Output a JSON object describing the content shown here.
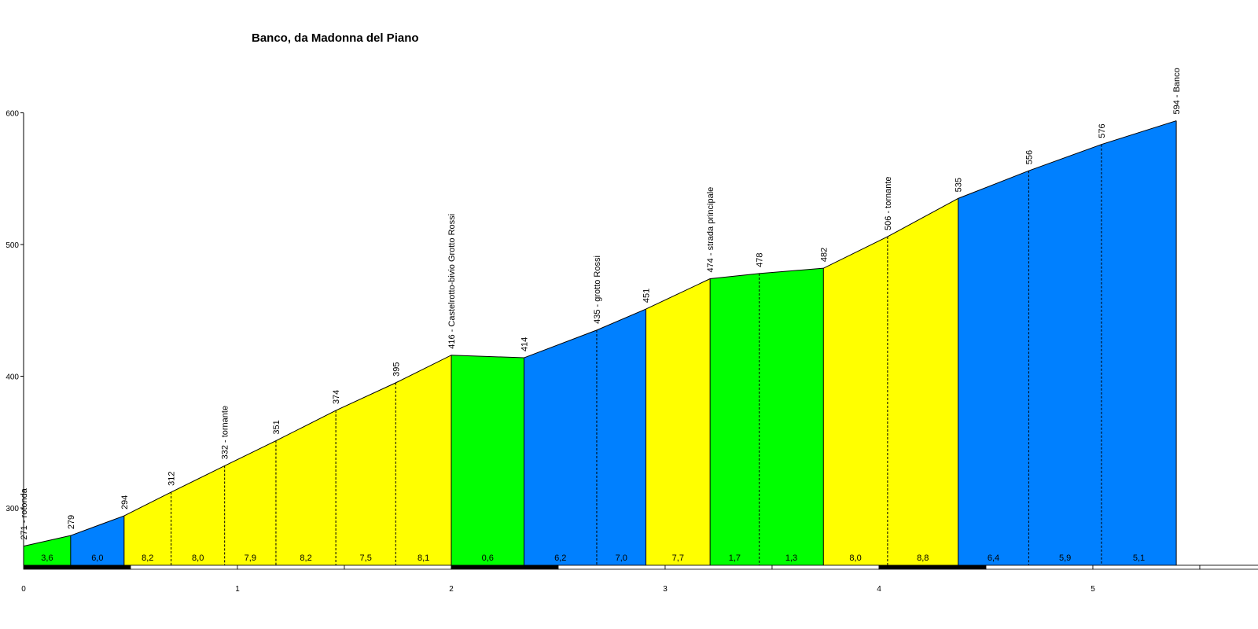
{
  "chart_data": {
    "type": "area",
    "title": "Banco, da Madonna del Piano",
    "xlabel": "",
    "ylabel": "",
    "xlim": [
      0,
      5.75
    ],
    "ylim": [
      255,
      600
    ],
    "grid": false,
    "legend": "none",
    "y_ticks": [
      "300",
      "400",
      "500",
      "600"
    ],
    "x_ticks": [
      "0",
      "1",
      "2",
      "3",
      "4",
      "5"
    ],
    "colors": {
      "easy": "#00ff00",
      "moderate": "#0080ff",
      "hard": "#ffff00",
      "line": "#000000",
      "divider": "#000000"
    },
    "points": [
      {
        "x": 0.0,
        "elev": 271,
        "label": "271 - rotonda"
      },
      {
        "x": 0.22,
        "elev": 279,
        "label": "279"
      },
      {
        "x": 0.47,
        "elev": 294,
        "label": "294"
      },
      {
        "x": 0.69,
        "elev": 312,
        "label": "312"
      },
      {
        "x": 0.94,
        "elev": 332,
        "label": "332 - tornante"
      },
      {
        "x": 1.18,
        "elev": 351,
        "label": "351"
      },
      {
        "x": 1.46,
        "elev": 374,
        "label": "374"
      },
      {
        "x": 1.74,
        "elev": 395,
        "label": "395"
      },
      {
        "x": 2.0,
        "elev": 416,
        "label": "416 - Castelrotto-bivio Grotto Rossi"
      },
      {
        "x": 2.34,
        "elev": 414,
        "label": "414"
      },
      {
        "x": 2.68,
        "elev": 435,
        "label": "435 - grotto Rossi"
      },
      {
        "x": 2.91,
        "elev": 451,
        "label": "451"
      },
      {
        "x": 3.21,
        "elev": 474,
        "label": "474 - strada principale"
      },
      {
        "x": 3.44,
        "elev": 478,
        "label": "478"
      },
      {
        "x": 3.74,
        "elev": 482,
        "label": "482"
      },
      {
        "x": 4.04,
        "elev": 506,
        "label": "506 - tornante"
      },
      {
        "x": 4.37,
        "elev": 535,
        "label": "535"
      },
      {
        "x": 4.7,
        "elev": 556,
        "label": "556"
      },
      {
        "x": 5.04,
        "elev": 576,
        "label": "576"
      },
      {
        "x": 5.39,
        "elev": 594,
        "label": "594 - Banco"
      }
    ],
    "segments": [
      {
        "grade": "3,6",
        "level": "easy"
      },
      {
        "grade": "6,0",
        "level": "moderate"
      },
      {
        "grade": "8,2",
        "level": "hard"
      },
      {
        "grade": "8,0",
        "level": "hard"
      },
      {
        "grade": "7,9",
        "level": "hard"
      },
      {
        "grade": "8,2",
        "level": "hard"
      },
      {
        "grade": "7,5",
        "level": "hard"
      },
      {
        "grade": "8,1",
        "level": "hard"
      },
      {
        "grade": "0,6",
        "level": "easy"
      },
      {
        "grade": "6,2",
        "level": "moderate"
      },
      {
        "grade": "7,0",
        "level": "moderate"
      },
      {
        "grade": "7,7",
        "level": "hard"
      },
      {
        "grade": "1,7",
        "level": "easy"
      },
      {
        "grade": "1,3",
        "level": "easy"
      },
      {
        "grade": "8,0",
        "level": "hard"
      },
      {
        "grade": "8,8",
        "level": "hard"
      },
      {
        "grade": "6,4",
        "level": "moderate"
      },
      {
        "grade": "5,9",
        "level": "moderate"
      },
      {
        "grade": "5,1",
        "level": "moderate"
      }
    ]
  }
}
